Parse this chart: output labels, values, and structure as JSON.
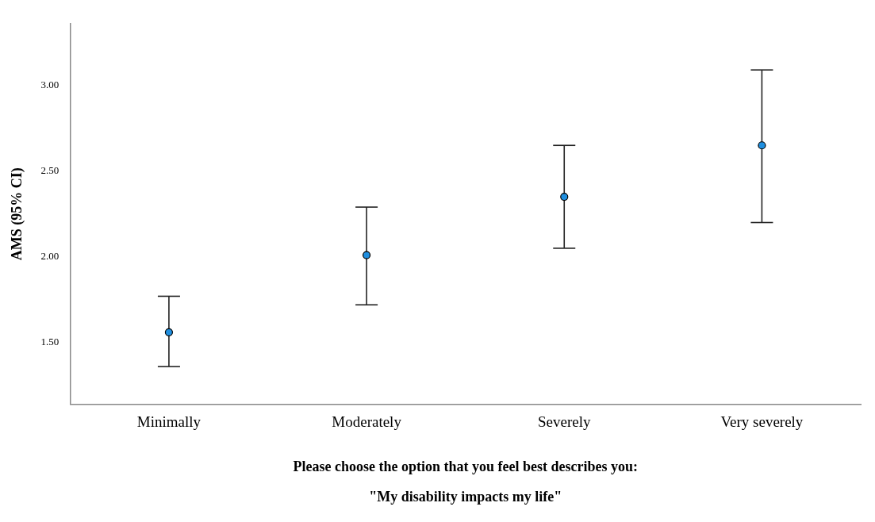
{
  "chart_data": {
    "type": "scatter",
    "categories": [
      "Minimally",
      "Moderately",
      "Severely",
      "Very severely"
    ],
    "color": "#1f8fe0",
    "values": [
      1.56,
      2.01,
      2.35,
      2.65
    ],
    "errors": [
      [
        1.36,
        1.77
      ],
      [
        1.72,
        2.29
      ],
      [
        2.05,
        2.65
      ],
      [
        2.2,
        3.09
      ]
    ],
    "ylabel": "AMS (95% CI)",
    "xlabel": "Please choose the option that you feel best describes you:\n\"My disability impacts my life\"",
    "ylim": [
      1.14,
      3.36
    ],
    "yticks": [
      {
        "value": 1.5,
        "label": "1.50"
      },
      {
        "value": 2,
        "label": "2.00"
      },
      {
        "value": 2.5,
        "label": "2.50"
      },
      {
        "value": 3,
        "label": "3.00"
      }
    ],
    "grid": false,
    "legend": false,
    "marker": "circle"
  }
}
